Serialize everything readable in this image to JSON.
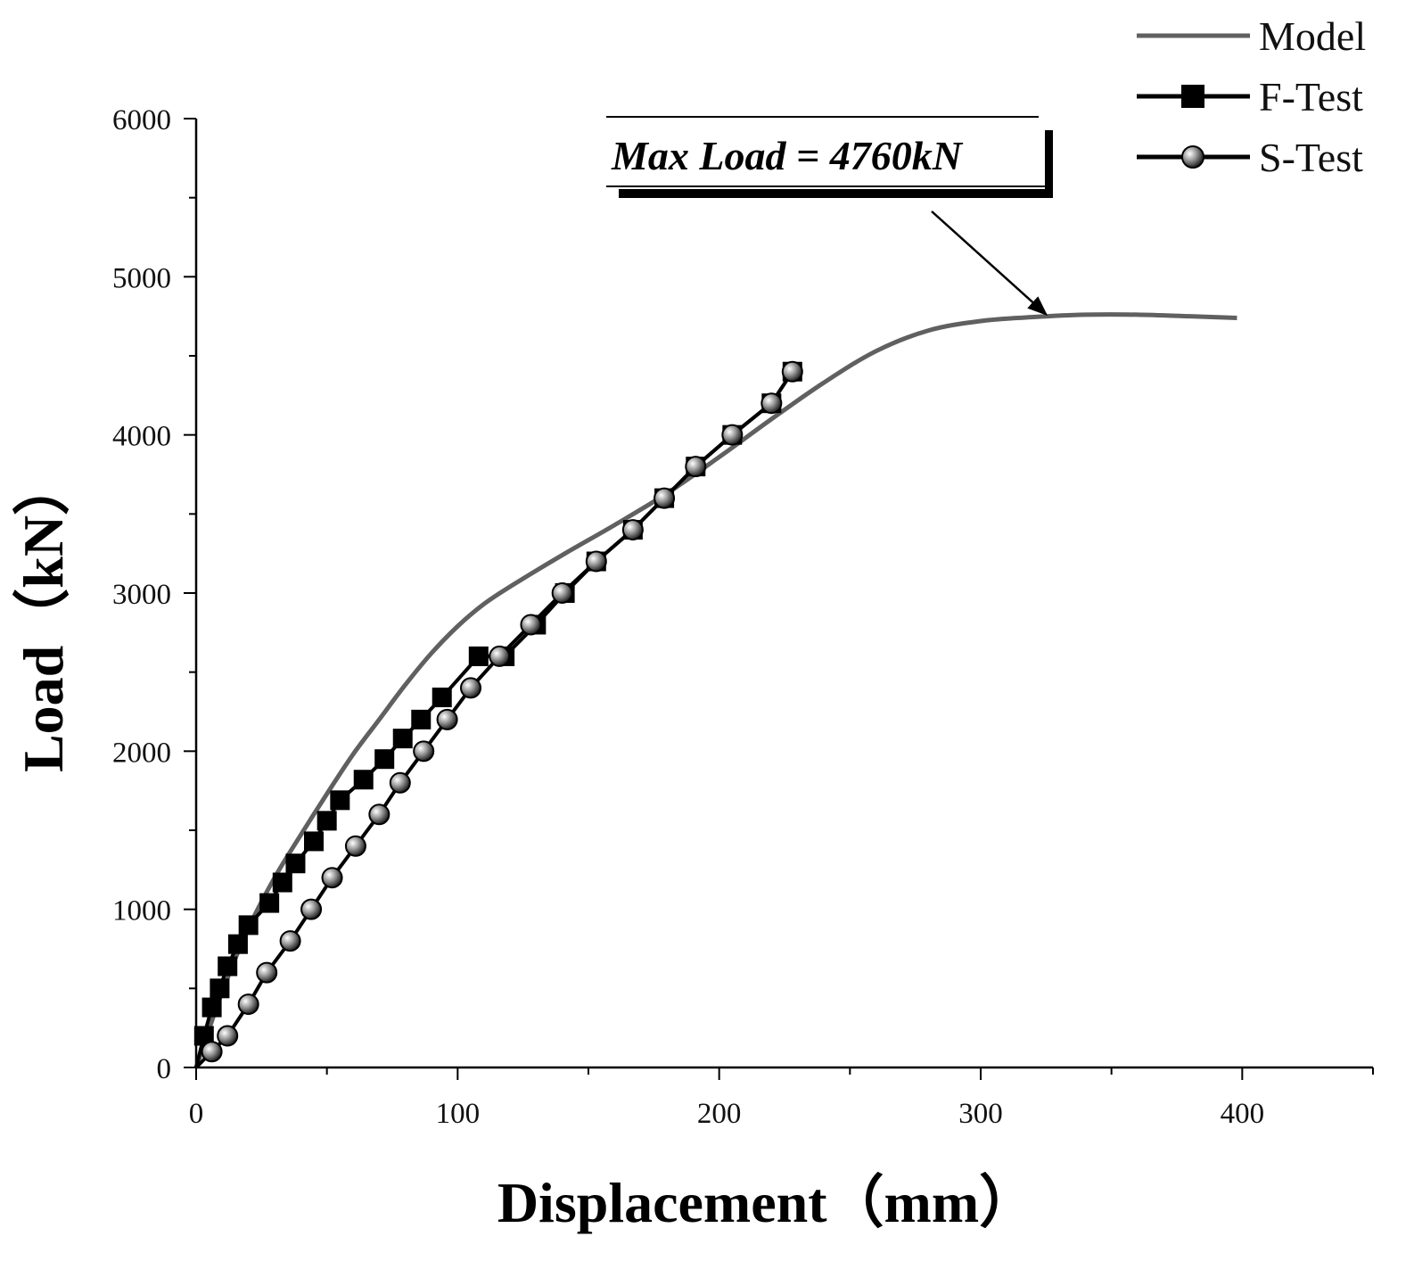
{
  "chart_data": {
    "type": "line",
    "xlabel": "Displacement（mm）",
    "ylabel": "Load（kN）",
    "xlim": [
      0,
      450
    ],
    "ylim": [
      0,
      6000
    ],
    "x_ticks": [
      "0",
      "100",
      "200",
      "300",
      "400"
    ],
    "y_ticks": [
      "0",
      "1000",
      "2000",
      "3000",
      "4000",
      "5000",
      "6000"
    ],
    "legend_position": "top-right",
    "annotation": {
      "text": "Max Load = 4760kN",
      "x": 325,
      "y": 4740
    },
    "series": [
      {
        "name": "Model",
        "style": "line",
        "color": "#606060",
        "x": [
          0,
          10,
          20,
          30,
          40,
          50,
          60,
          70,
          80,
          90,
          100,
          110,
          120,
          140,
          160,
          180,
          200,
          220,
          240,
          260,
          280,
          300,
          320,
          340,
          360,
          380,
          398
        ],
        "y": [
          0,
          480,
          880,
          1200,
          1470,
          1730,
          1980,
          2200,
          2420,
          2620,
          2790,
          2930,
          3040,
          3240,
          3430,
          3630,
          3860,
          4100,
          4330,
          4530,
          4660,
          4720,
          4745,
          4760,
          4760,
          4750,
          4740
        ]
      },
      {
        "name": "F-Test",
        "style": "line-square",
        "color": "#000000",
        "x": [
          0,
          3,
          6,
          9,
          12,
          16,
          20,
          28,
          33,
          38,
          45,
          50,
          55,
          64,
          72,
          79,
          86,
          94,
          108,
          118,
          130,
          141,
          153,
          167,
          179,
          191,
          205,
          220,
          228
        ],
        "y": [
          0,
          200,
          380,
          500,
          640,
          780,
          900,
          1040,
          1170,
          1290,
          1430,
          1560,
          1690,
          1820,
          1950,
          2080,
          2200,
          2340,
          2600,
          2600,
          2800,
          3000,
          3200,
          3400,
          3600,
          3800,
          4000,
          4200,
          4400
        ]
      },
      {
        "name": "S-Test",
        "style": "line-sphere",
        "color": "#000000",
        "x": [
          0,
          6,
          12,
          20,
          27,
          36,
          44,
          52,
          61,
          70,
          78,
          87,
          96,
          105,
          116,
          128,
          140,
          153,
          167,
          179,
          191,
          205,
          220,
          228
        ],
        "y": [
          0,
          100,
          200,
          400,
          600,
          800,
          1000,
          1200,
          1400,
          1600,
          1800,
          2000,
          2200,
          2400,
          2600,
          2800,
          3000,
          3200,
          3400,
          3600,
          3800,
          4000,
          4200,
          4400
        ]
      }
    ]
  }
}
